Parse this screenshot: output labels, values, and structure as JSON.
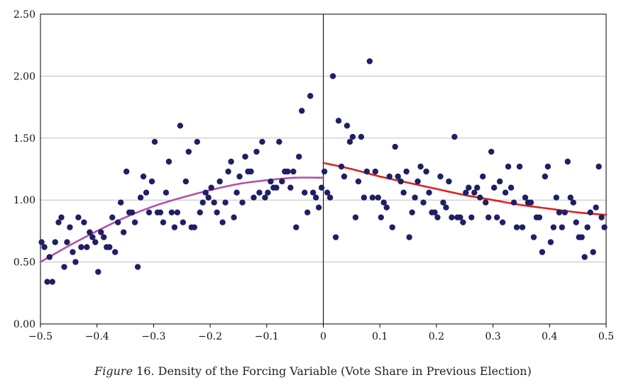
{
  "caption": {
    "figure_word": "Figure",
    "text": " 16. Density of the Forcing Variable (Vote Share in Previous Election)"
  },
  "colors": {
    "points": "#1f1f66",
    "left_curve": "#b24fa5",
    "right_curve": "#e02020",
    "grid": "#bfbfbf",
    "axis": "#000000"
  },
  "chart_data": {
    "type": "scatter",
    "title": "",
    "xlabel": "",
    "ylabel": "",
    "xlim": [
      -0.5,
      0.5
    ],
    "ylim": [
      0,
      2.5
    ],
    "x_ticks": [
      -0.5,
      -0.4,
      -0.3,
      -0.2,
      -0.1,
      0,
      0.1,
      0.2,
      0.3,
      0.4,
      0.5
    ],
    "x_tick_labels": [
      "−0.5",
      "−0.4",
      "−0.3",
      "−0.2",
      "−0.1",
      "0",
      "0.1",
      "0.2",
      "0.3",
      "0.4",
      "0.5"
    ],
    "y_ticks": [
      0,
      0.5,
      1.0,
      1.5,
      2.0,
      2.5
    ],
    "y_tick_labels": [
      "0.00",
      "0.50",
      "1.00",
      "1.50",
      "2.00",
      "2.50"
    ],
    "grid": "horizontal",
    "threshold_x": 0,
    "points": [
      [
        -0.498,
        0.66
      ],
      [
        -0.493,
        0.62
      ],
      [
        -0.488,
        0.34
      ],
      [
        -0.484,
        0.54
      ],
      [
        -0.479,
        0.34
      ],
      [
        -0.474,
        0.66
      ],
      [
        -0.468,
        0.82
      ],
      [
        -0.463,
        0.86
      ],
      [
        -0.458,
        0.46
      ],
      [
        -0.453,
        0.66
      ],
      [
        -0.448,
        0.78
      ],
      [
        -0.443,
        0.58
      ],
      [
        -0.438,
        0.5
      ],
      [
        -0.433,
        0.86
      ],
      [
        -0.428,
        0.62
      ],
      [
        -0.423,
        0.82
      ],
      [
        -0.418,
        0.62
      ],
      [
        -0.413,
        0.74
      ],
      [
        -0.408,
        0.7
      ],
      [
        -0.403,
        0.66
      ],
      [
        -0.398,
        0.42
      ],
      [
        -0.393,
        0.74
      ],
      [
        -0.388,
        0.7
      ],
      [
        -0.383,
        0.62
      ],
      [
        -0.378,
        0.62
      ],
      [
        -0.373,
        0.86
      ],
      [
        -0.368,
        0.58
      ],
      [
        -0.363,
        0.82
      ],
      [
        -0.358,
        0.98
      ],
      [
        -0.353,
        0.74
      ],
      [
        -0.348,
        1.23
      ],
      [
        -0.343,
        0.9
      ],
      [
        -0.338,
        0.9
      ],
      [
        -0.333,
        0.82
      ],
      [
        -0.328,
        0.46
      ],
      [
        -0.323,
        1.02
      ],
      [
        -0.318,
        1.19
      ],
      [
        -0.313,
        1.06
      ],
      [
        -0.308,
        0.9
      ],
      [
        -0.303,
        1.15
      ],
      [
        -0.298,
        1.47
      ],
      [
        -0.293,
        0.9
      ],
      [
        -0.288,
        0.9
      ],
      [
        -0.283,
        0.82
      ],
      [
        -0.278,
        1.06
      ],
      [
        -0.273,
        1.31
      ],
      [
        -0.268,
        0.9
      ],
      [
        -0.263,
        0.78
      ],
      [
        -0.258,
        0.9
      ],
      [
        -0.253,
        1.6
      ],
      [
        -0.248,
        0.82
      ],
      [
        -0.243,
        1.15
      ],
      [
        -0.238,
        1.39
      ],
      [
        -0.233,
        0.78
      ],
      [
        -0.228,
        0.78
      ],
      [
        -0.223,
        1.47
      ],
      [
        -0.218,
        0.9
      ],
      [
        -0.213,
        0.98
      ],
      [
        -0.208,
        1.06
      ],
      [
        -0.203,
        1.02
      ],
      [
        -0.198,
        1.1
      ],
      [
        -0.193,
        0.98
      ],
      [
        -0.188,
        0.9
      ],
      [
        -0.183,
        1.15
      ],
      [
        -0.178,
        0.82
      ],
      [
        -0.173,
        0.98
      ],
      [
        -0.168,
        1.23
      ],
      [
        -0.163,
        1.31
      ],
      [
        -0.158,
        0.86
      ],
      [
        -0.153,
        1.06
      ],
      [
        -0.148,
        1.19
      ],
      [
        -0.143,
        0.98
      ],
      [
        -0.138,
        1.35
      ],
      [
        -0.133,
        1.23
      ],
      [
        -0.128,
        1.23
      ],
      [
        -0.123,
        1.02
      ],
      [
        -0.118,
        1.39
      ],
      [
        -0.113,
        1.06
      ],
      [
        -0.108,
        1.47
      ],
      [
        -0.103,
        1.02
      ],
      [
        -0.098,
        1.06
      ],
      [
        -0.093,
        1.15
      ],
      [
        -0.088,
        1.1
      ],
      [
        -0.083,
        1.1
      ],
      [
        -0.078,
        1.47
      ],
      [
        -0.073,
        1.15
      ],
      [
        -0.068,
        1.23
      ],
      [
        -0.063,
        1.23
      ],
      [
        -0.058,
        1.1
      ],
      [
        -0.053,
        1.23
      ],
      [
        -0.048,
        0.78
      ],
      [
        -0.043,
        1.35
      ],
      [
        -0.038,
        1.72
      ],
      [
        -0.033,
        1.06
      ],
      [
        -0.028,
        0.9
      ],
      [
        -0.023,
        1.84
      ],
      [
        -0.018,
        1.06
      ],
      [
        -0.013,
        1.02
      ],
      [
        -0.008,
        0.94
      ],
      [
        -0.003,
        1.1
      ],
      [
        0.002,
        1.23
      ],
      [
        0.007,
        1.06
      ],
      [
        0.012,
        1.02
      ],
      [
        0.017,
        2.0
      ],
      [
        0.022,
        0.7
      ],
      [
        0.027,
        1.64
      ],
      [
        0.032,
        1.27
      ],
      [
        0.037,
        1.19
      ],
      [
        0.042,
        1.6
      ],
      [
        0.047,
        1.47
      ],
      [
        0.052,
        1.51
      ],
      [
        0.057,
        0.86
      ],
      [
        0.062,
        1.15
      ],
      [
        0.067,
        1.51
      ],
      [
        0.072,
        1.02
      ],
      [
        0.077,
        1.23
      ],
      [
        0.082,
        2.12
      ],
      [
        0.087,
        1.02
      ],
      [
        0.092,
        1.23
      ],
      [
        0.097,
        1.02
      ],
      [
        0.102,
        0.86
      ],
      [
        0.107,
        0.98
      ],
      [
        0.112,
        0.94
      ],
      [
        0.117,
        1.19
      ],
      [
        0.122,
        0.78
      ],
      [
        0.127,
        1.43
      ],
      [
        0.132,
        1.19
      ],
      [
        0.137,
        1.15
      ],
      [
        0.142,
        1.06
      ],
      [
        0.147,
        1.23
      ],
      [
        0.152,
        0.7
      ],
      [
        0.157,
        0.9
      ],
      [
        0.162,
        1.02
      ],
      [
        0.167,
        1.15
      ],
      [
        0.172,
        1.27
      ],
      [
        0.177,
        0.98
      ],
      [
        0.182,
        1.23
      ],
      [
        0.187,
        1.06
      ],
      [
        0.192,
        0.9
      ],
      [
        0.197,
        0.9
      ],
      [
        0.202,
        0.86
      ],
      [
        0.207,
        1.19
      ],
      [
        0.212,
        0.98
      ],
      [
        0.217,
        0.94
      ],
      [
        0.222,
        1.15
      ],
      [
        0.227,
        0.86
      ],
      [
        0.232,
        1.51
      ],
      [
        0.237,
        0.86
      ],
      [
        0.242,
        0.86
      ],
      [
        0.247,
        0.82
      ],
      [
        0.252,
        1.06
      ],
      [
        0.257,
        1.1
      ],
      [
        0.262,
        0.86
      ],
      [
        0.267,
        1.06
      ],
      [
        0.272,
        1.1
      ],
      [
        0.277,
        1.02
      ],
      [
        0.282,
        1.19
      ],
      [
        0.287,
        0.98
      ],
      [
        0.292,
        0.86
      ],
      [
        0.297,
        1.39
      ],
      [
        0.302,
        1.1
      ],
      [
        0.307,
        0.86
      ],
      [
        0.312,
        1.15
      ],
      [
        0.317,
        0.82
      ],
      [
        0.322,
        1.06
      ],
      [
        0.327,
        1.27
      ],
      [
        0.332,
        1.1
      ],
      [
        0.337,
        0.98
      ],
      [
        0.342,
        0.78
      ],
      [
        0.347,
        1.27
      ],
      [
        0.352,
        0.78
      ],
      [
        0.357,
        1.02
      ],
      [
        0.362,
        0.98
      ],
      [
        0.367,
        0.98
      ],
      [
        0.372,
        0.7
      ],
      [
        0.377,
        0.86
      ],
      [
        0.382,
        0.86
      ],
      [
        0.387,
        0.58
      ],
      [
        0.392,
        1.19
      ],
      [
        0.397,
        1.27
      ],
      [
        0.402,
        0.66
      ],
      [
        0.407,
        0.78
      ],
      [
        0.412,
        1.02
      ],
      [
        0.417,
        0.9
      ],
      [
        0.422,
        0.78
      ],
      [
        0.427,
        0.9
      ],
      [
        0.432,
        1.31
      ],
      [
        0.437,
        1.02
      ],
      [
        0.442,
        0.98
      ],
      [
        0.447,
        0.82
      ],
      [
        0.452,
        0.7
      ],
      [
        0.457,
        0.7
      ],
      [
        0.462,
        0.54
      ],
      [
        0.467,
        0.78
      ],
      [
        0.472,
        0.9
      ],
      [
        0.477,
        0.58
      ],
      [
        0.482,
        0.94
      ],
      [
        0.487,
        1.27
      ],
      [
        0.492,
        0.86
      ],
      [
        0.497,
        0.78
      ]
    ],
    "fit_curves": [
      {
        "side": "left",
        "x": [
          -0.5,
          -0.45,
          -0.4,
          -0.35,
          -0.3,
          -0.25,
          -0.2,
          -0.15,
          -0.1,
          -0.05,
          0
        ],
        "y": [
          0.5,
          0.63,
          0.75,
          0.86,
          0.95,
          1.02,
          1.08,
          1.13,
          1.16,
          1.18,
          1.18
        ]
      },
      {
        "side": "right",
        "x": [
          0,
          0.05,
          0.1,
          0.15,
          0.2,
          0.25,
          0.3,
          0.35,
          0.4,
          0.45,
          0.5
        ],
        "y": [
          1.3,
          1.25,
          1.19,
          1.14,
          1.09,
          1.04,
          1.0,
          0.96,
          0.93,
          0.9,
          0.88
        ]
      }
    ]
  }
}
